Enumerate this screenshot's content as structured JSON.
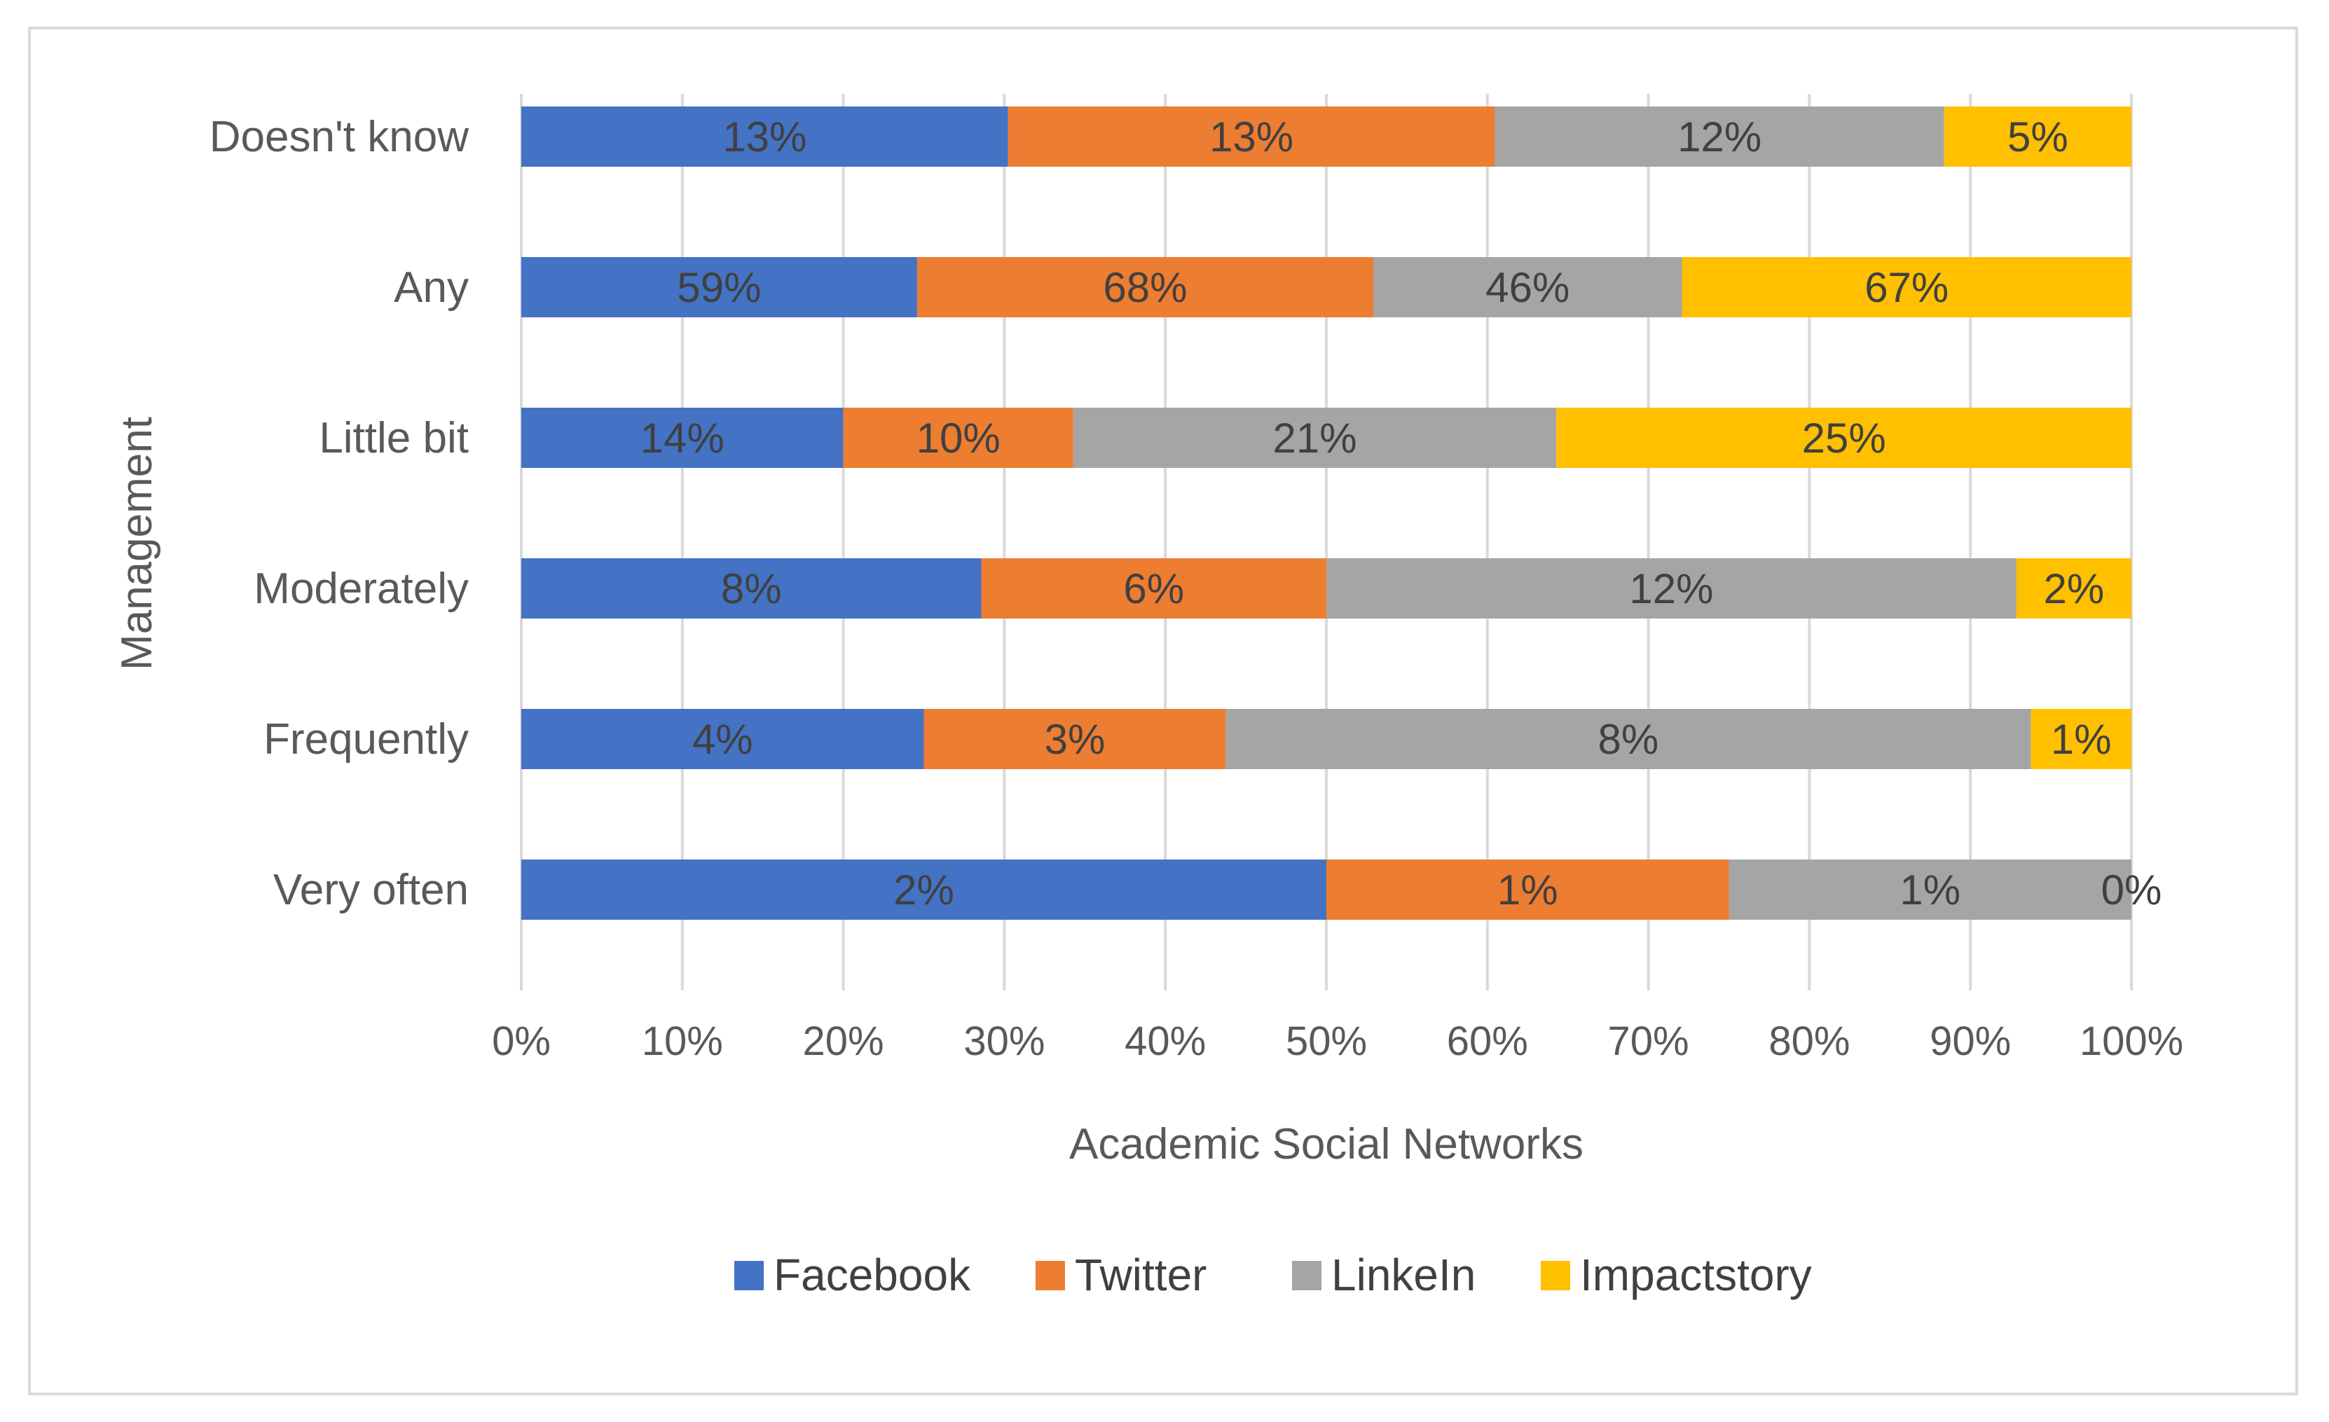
{
  "chart_data": {
    "type": "bar",
    "orientation": "horizontal",
    "stacked": "percent",
    "title": "",
    "xlabel": "Academic Social Networks",
    "ylabel": "Management",
    "xlim": [
      0,
      100
    ],
    "x_ticks": [
      "0%",
      "10%",
      "20%",
      "30%",
      "40%",
      "50%",
      "60%",
      "70%",
      "80%",
      "90%",
      "100%"
    ],
    "grid": true,
    "legend_position": "bottom",
    "categories": [
      "Doesn't know",
      "Any",
      "Little bit",
      "Moderately",
      "Frequently",
      "Very often"
    ],
    "series": [
      {
        "name": "Facebook",
        "color": "#4472C4",
        "values": [
          13,
          59,
          14,
          8,
          4,
          2
        ],
        "labels": [
          "13%",
          "59%",
          "14%",
          "8%",
          "4%",
          "2%"
        ]
      },
      {
        "name": "Twitter",
        "color": "#ED7D31",
        "values": [
          13,
          68,
          10,
          6,
          3,
          1
        ],
        "labels": [
          "13%",
          "68%",
          "10%",
          "6%",
          "3%",
          "1%"
        ]
      },
      {
        "name": "LinkeIn",
        "color": "#A5A5A5",
        "values": [
          12,
          46,
          21,
          12,
          8,
          1
        ],
        "labels": [
          "12%",
          "46%",
          "21%",
          "12%",
          "8%",
          "1%"
        ]
      },
      {
        "name": "Impactstory",
        "color": "#FFC000",
        "values": [
          5,
          67,
          25,
          2,
          1,
          0
        ],
        "labels": [
          "5%",
          "67%",
          "25%",
          "2%",
          "1%",
          "0%"
        ]
      }
    ]
  }
}
